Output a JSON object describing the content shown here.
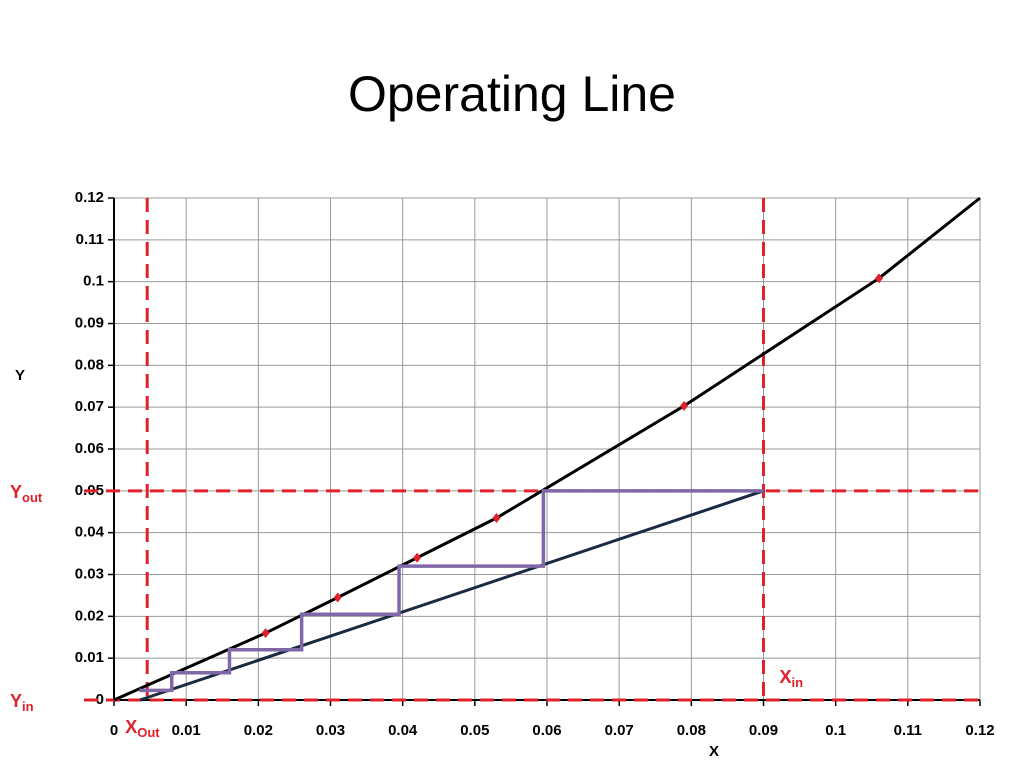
{
  "chart_data": {
    "type": "line",
    "title": "Operating Line",
    "x_label": "X",
    "y_label": "Y",
    "xlim": [
      0,
      0.12
    ],
    "ylim": [
      0,
      0.12
    ],
    "xticks": [
      0,
      0.01,
      0.02,
      0.03,
      0.04,
      0.05,
      0.06,
      0.07,
      0.08,
      0.09,
      0.1,
      0.11,
      0.12
    ],
    "yticks": [
      0,
      0.01,
      0.02,
      0.03,
      0.04,
      0.05,
      0.06,
      0.07,
      0.08,
      0.09,
      0.1,
      0.11,
      0.12
    ],
    "grid": true,
    "series": [
      {
        "color": "#000000",
        "markers": false,
        "x": [
          0,
          0.021,
          0.031,
          0.042,
          0.053,
          0.079,
          0.106,
          0.12
        ],
        "values": [
          0,
          0.016,
          0.0245,
          0.034,
          0.0435,
          0.0703,
          0.1008,
          0.12
        ]
      },
      {
        "color": "#1a2a40",
        "markers": false,
        "x": [
          0.0036,
          0.09
        ],
        "values": [
          0,
          0.05
        ]
      },
      {
        "color": "#8068a8",
        "markers": false,
        "x": [
          0.09,
          0.0595,
          0.0595,
          0.0395,
          0.0395,
          0.026,
          0.026,
          0.016,
          0.016,
          0.008,
          0.008,
          0.0035
        ],
        "values": [
          0.05,
          0.05,
          0.032,
          0.032,
          0.0205,
          0.0205,
          0.012,
          0.012,
          0.0065,
          0.0065,
          0.0023,
          0.0023
        ]
      },
      {
        "color": "#e0202a",
        "markers": true,
        "x": [
          0.021,
          0.031,
          0.042,
          0.053,
          0.079,
          0.106
        ],
        "values": [
          0.016,
          0.0245,
          0.034,
          0.0435,
          0.0703,
          0.1008
        ]
      }
    ],
    "reference_lines": [
      {
        "axis": "x",
        "value": 0.0046,
        "label": "X",
        "sub": "Out"
      },
      {
        "axis": "x",
        "value": 0.09,
        "label": "X",
        "sub": "in"
      },
      {
        "axis": "y",
        "value": 0.05,
        "label": "Y",
        "sub": "out"
      },
      {
        "axis": "y",
        "value": 0,
        "label": "Y",
        "sub": "in"
      }
    ],
    "reference_color": "#e0202a"
  }
}
